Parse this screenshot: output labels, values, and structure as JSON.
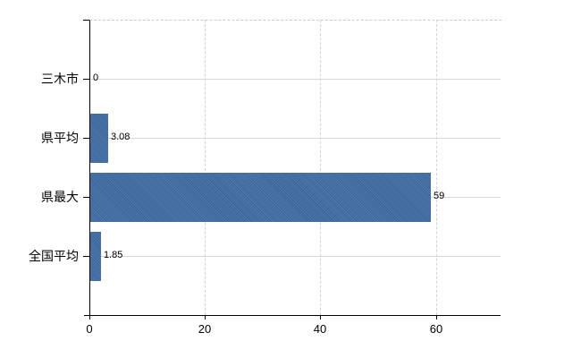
{
  "chart_data": {
    "type": "bar",
    "orientation": "horizontal",
    "title": "",
    "xlabel": "",
    "ylabel": "",
    "categories": [
      "三木市",
      "県平均",
      "県最大",
      "全国平均"
    ],
    "values": [
      0,
      3.08,
      59,
      1.85
    ],
    "value_labels": [
      "0",
      "3.08",
      "59",
      "1.85"
    ],
    "xlim": [
      0,
      71.2
    ],
    "xticks": [
      0,
      20,
      40,
      60
    ],
    "xtick_labels": [
      "0",
      "20",
      "40",
      "60"
    ],
    "grid": "on",
    "legend": "none",
    "colors": {
      "bar": "#3d6aa5",
      "axis": "#000000",
      "h_gridline": "#d7dbd3",
      "v_gridline": "#d3d3d3",
      "plot_top_border": "#cbcbcb",
      "text": "#000000",
      "background": "#ffffff"
    }
  }
}
